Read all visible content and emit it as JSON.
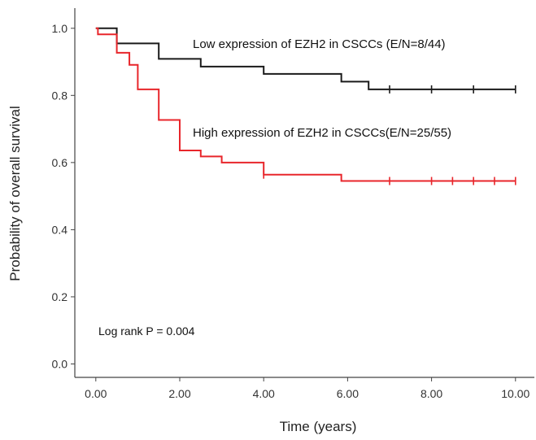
{
  "chart_data": {
    "type": "line",
    "subtype": "kaplan-meier step",
    "xlabel": "Time (years)",
    "ylabel": "Probability of overall survival",
    "xlim": [
      -0.5,
      10.45
    ],
    "ylim": [
      -0.04,
      1.06
    ],
    "x_ticks": [
      "0.00",
      "2.00",
      "4.00",
      "6.00",
      "8.00",
      "10.00"
    ],
    "x_tick_values": [
      0,
      2,
      4,
      6,
      8,
      10
    ],
    "y_ticks": [
      "0.0",
      "0.2",
      "0.4",
      "0.6",
      "0.8",
      "1.0"
    ],
    "y_tick_values": [
      0,
      0.2,
      0.4,
      0.6,
      0.8,
      1.0
    ],
    "grid": false,
    "annotation": "Log rank P = 0.004",
    "series": [
      {
        "name": "Low expression of EZH2 in CSCCs (E/N=8/44)",
        "color": "#1a1a1a",
        "steps": [
          [
            0,
            1.0
          ],
          [
            0.5,
            0.955
          ],
          [
            1.5,
            0.909
          ],
          [
            2.5,
            0.886
          ],
          [
            4.0,
            0.864
          ],
          [
            5.85,
            0.841
          ],
          [
            6.5,
            0.818
          ],
          [
            10.0,
            0.818
          ]
        ],
        "censored": [
          [
            7.0,
            0.818
          ],
          [
            8.0,
            0.818
          ],
          [
            9.0,
            0.818
          ],
          [
            10.0,
            0.818
          ]
        ]
      },
      {
        "name": "High expression of EZH2 in CSCCs(E/N=25/55)",
        "color": "#e8262b",
        "steps": [
          [
            0,
            1.0
          ],
          [
            0.05,
            0.982
          ],
          [
            0.5,
            0.927
          ],
          [
            0.8,
            0.891
          ],
          [
            1.0,
            0.818
          ],
          [
            1.5,
            0.727
          ],
          [
            2.0,
            0.636
          ],
          [
            2.5,
            0.618
          ],
          [
            3.0,
            0.6
          ],
          [
            4.0,
            0.564
          ],
          [
            5.85,
            0.545
          ],
          [
            10.0,
            0.545
          ]
        ],
        "censored": [
          [
            4.0,
            0.564
          ],
          [
            7.0,
            0.545
          ],
          [
            8.0,
            0.545
          ],
          [
            8.5,
            0.545
          ],
          [
            9.0,
            0.545
          ],
          [
            9.5,
            0.545
          ],
          [
            10.0,
            0.545
          ]
        ]
      }
    ]
  }
}
